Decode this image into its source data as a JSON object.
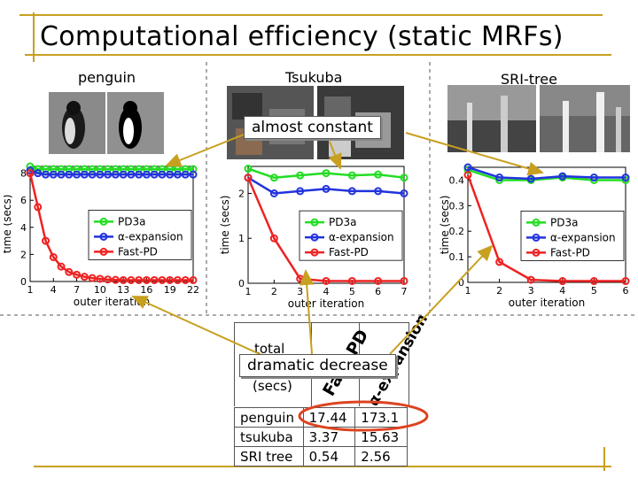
{
  "title": "Computational efficiency (static MRFs)",
  "panel_labels": {
    "penguin": "penguin",
    "tsukuba": "Tsukuba",
    "sri": "SRI-tree"
  },
  "callouts": {
    "top": "almost constant",
    "bottom": "dramatic decrease"
  },
  "colors": {
    "pd3a": "#22dd22",
    "alpha": "#2233dd",
    "fastpd": "#ee2222",
    "highlight": "#dd4422",
    "arrow": "#c8a020"
  },
  "table": {
    "header": [
      "total",
      "(secs)",
      "Fast-PD",
      "α-expansion"
    ],
    "rows": [
      {
        "name": "penguin",
        "fastpd": "17.44",
        "alpha": "173.1"
      },
      {
        "name": "tsukuba",
        "fastpd": "3.37",
        "alpha": "15.63"
      },
      {
        "name": "SRI tree",
        "fastpd": "0.54",
        "alpha": "2.56"
      }
    ]
  },
  "chart_data": [
    {
      "type": "line",
      "xlabel": "outer iteration",
      "ylabel": "time (secs)",
      "xticks": [
        1,
        4,
        7,
        10,
        13,
        16,
        19,
        22
      ],
      "yticks": [
        0,
        2,
        4,
        6,
        8
      ],
      "xlim": [
        1,
        22
      ],
      "ylim": [
        0,
        8.5
      ],
      "legend_position": "center-right",
      "x": [
        1,
        2,
        3,
        4,
        5,
        6,
        7,
        8,
        9,
        10,
        11,
        12,
        13,
        14,
        15,
        16,
        17,
        18,
        19,
        20,
        21,
        22
      ],
      "series": [
        {
          "name": "PD3a",
          "color": "#22dd22",
          "values": [
            8.5,
            8.3,
            8.3,
            8.3,
            8.3,
            8.3,
            8.3,
            8.3,
            8.3,
            8.3,
            8.3,
            8.3,
            8.3,
            8.3,
            8.3,
            8.3,
            8.3,
            8.3,
            8.3,
            8.3,
            8.3,
            8.3
          ]
        },
        {
          "name": "α-expansion",
          "color": "#2233dd",
          "values": [
            8.2,
            8.0,
            7.9,
            7.9,
            7.9,
            7.9,
            7.9,
            7.9,
            7.9,
            7.9,
            7.9,
            7.9,
            7.9,
            7.9,
            7.9,
            7.9,
            7.9,
            7.9,
            7.9,
            7.9,
            7.9,
            7.9
          ]
        },
        {
          "name": "Fast-PD",
          "color": "#ee2222",
          "values": [
            8.0,
            5.5,
            3.0,
            1.8,
            1.1,
            0.7,
            0.5,
            0.35,
            0.25,
            0.2,
            0.15,
            0.12,
            0.1,
            0.1,
            0.1,
            0.1,
            0.1,
            0.1,
            0.1,
            0.1,
            0.1,
            0.1
          ]
        }
      ]
    },
    {
      "type": "line",
      "xlabel": "outer iteration",
      "ylabel": "time (secs)",
      "xticks": [
        1,
        2,
        3,
        4,
        5,
        6,
        7
      ],
      "yticks": [
        0,
        1,
        2
      ],
      "xlim": [
        1,
        7
      ],
      "ylim": [
        0,
        2.6
      ],
      "legend_position": "center-right",
      "x": [
        1,
        2,
        3,
        4,
        5,
        6,
        7
      ],
      "series": [
        {
          "name": "PD3a",
          "color": "#22dd22",
          "values": [
            2.55,
            2.35,
            2.4,
            2.45,
            2.4,
            2.42,
            2.35
          ]
        },
        {
          "name": "α-expansion",
          "color": "#2233dd",
          "values": [
            2.35,
            2.0,
            2.05,
            2.1,
            2.05,
            2.05,
            2.0
          ]
        },
        {
          "name": "Fast-PD",
          "color": "#ee2222",
          "values": [
            2.35,
            1.0,
            0.1,
            0.05,
            0.05,
            0.05,
            0.05
          ]
        }
      ]
    },
    {
      "type": "line",
      "xlabel": "outer iteration",
      "ylabel": "time (secs)",
      "xticks": [
        1,
        2,
        3,
        4,
        5,
        6
      ],
      "yticks": [
        0,
        0.1,
        0.2,
        0.3,
        0.4
      ],
      "xlim": [
        1,
        6
      ],
      "ylim": [
        0,
        0.45
      ],
      "legend_position": "center-right",
      "x": [
        1,
        2,
        3,
        4,
        5,
        6
      ],
      "series": [
        {
          "name": "PD3a",
          "color": "#22dd22",
          "values": [
            0.44,
            0.4,
            0.4,
            0.41,
            0.4,
            0.4
          ]
        },
        {
          "name": "α-expansion",
          "color": "#2233dd",
          "values": [
            0.45,
            0.41,
            0.405,
            0.415,
            0.41,
            0.41
          ]
        },
        {
          "name": "Fast-PD",
          "color": "#ee2222",
          "values": [
            0.42,
            0.08,
            0.01,
            0.005,
            0.005,
            0.005
          ]
        }
      ]
    }
  ]
}
